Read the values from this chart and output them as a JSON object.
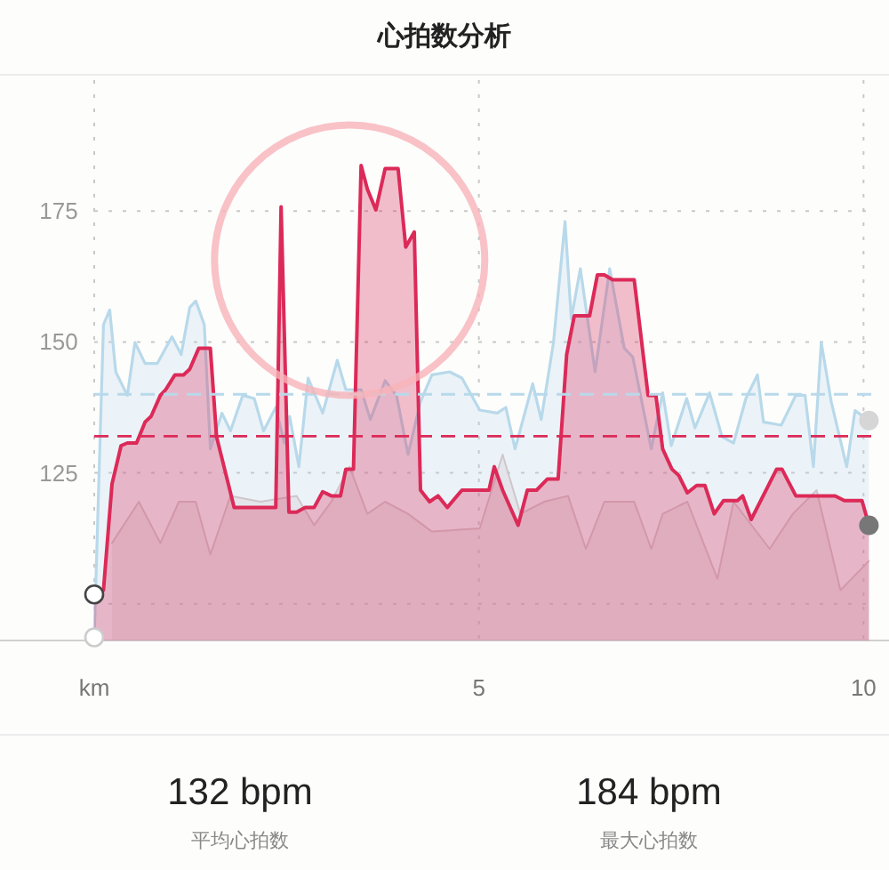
{
  "chart_data": {
    "type": "area",
    "title": "心拍数分析",
    "xlim": [
      0,
      10.1
    ],
    "ylim": [
      93,
      200
    ],
    "xticks": [
      {
        "value": 0,
        "label": "km"
      },
      5,
      10
    ],
    "yticks": [
      {
        "value": 100,
        "label": null
      },
      125,
      150,
      175
    ],
    "grid": true,
    "series": [
      {
        "color": "#cfc6cb",
        "x": [
          0.23,
          0.58,
          0.86,
          1.1,
          1.32,
          1.51,
          1.77,
          2.16,
          2.63,
          2.86,
          3.08,
          3.32,
          3.55,
          3.78,
          4.08,
          4.39,
          5.01,
          5.31,
          5.54,
          5.85,
          6.16,
          6.39,
          6.63,
          7.02,
          7.24,
          7.39,
          7.71,
          8.1,
          8.31,
          8.78,
          9.08,
          9.39,
          9.7,
          10.07
        ],
        "values": [
          111.6,
          119.5,
          111.6,
          119.5,
          119.5,
          109.4,
          120.6,
          119.5,
          120.6,
          115,
          119.5,
          126.2,
          117.2,
          119.5,
          117.2,
          113.8,
          114.4,
          128.5,
          117.2,
          119.5,
          120.6,
          110.5,
          119.5,
          119.5,
          110.5,
          117.2,
          119.5,
          104.8,
          119.5,
          110.5,
          117.2,
          121.7,
          102.6,
          108.2
        ]
      },
      {
        "color": "#b8d9ea",
        "x": [
          0,
          0.12,
          0.2,
          0.28,
          0.43,
          0.53,
          0.66,
          0.82,
          1.01,
          1.13,
          1.24,
          1.32,
          1.43,
          1.51,
          1.66,
          1.77,
          1.93,
          2.08,
          2.2,
          2.36,
          2.47,
          2.54,
          2.66,
          2.78,
          2.97,
          3.16,
          3.27,
          3.47,
          3.59,
          3.78,
          3.93,
          4.08,
          4.24,
          4.39,
          4.62,
          4.78,
          5.01,
          5.24,
          5.35,
          5.47,
          5.7,
          5.81,
          5.97,
          6.12,
          6.2,
          6.32,
          6.51,
          6.7,
          6.89,
          7.0,
          7.24,
          7.39,
          7.5,
          7.7,
          7.81,
          8.0,
          8.16,
          8.31,
          8.47,
          8.62,
          8.7,
          8.93,
          9.12,
          9.24,
          9.35,
          9.45,
          9.58,
          9.78,
          9.89,
          10.07
        ],
        "values": [
          93.6,
          153.3,
          156.1,
          144.3,
          139.8,
          149.9,
          145.9,
          145.9,
          151,
          147.6,
          156.6,
          157.8,
          153.3,
          129.6,
          136.4,
          133,
          139.8,
          139.2,
          133,
          137.5,
          130.7,
          135.8,
          126.2,
          143.1,
          136.4,
          146.5,
          140.9,
          140.9,
          135.2,
          142.6,
          139.8,
          128.5,
          138.6,
          143.7,
          144.3,
          143.1,
          137,
          136.4,
          137.5,
          129.6,
          142,
          135.2,
          149.9,
          173,
          154.4,
          164,
          144.3,
          164,
          148.8,
          147.1,
          129.6,
          140.3,
          130.2,
          139.2,
          133.6,
          140.3,
          131.9,
          130.7,
          139.2,
          143.7,
          134.7,
          134.1,
          139.8,
          139.8,
          126.2,
          149.9,
          138.6,
          126.2,
          136.9,
          135
        ]
      },
      {
        "color": "#dc2a58",
        "x": [
          0,
          0.12,
          0.23,
          0.35,
          0.43,
          0.55,
          0.66,
          0.74,
          0.86,
          0.93,
          1.05,
          1.16,
          1.24,
          1.36,
          1.51,
          1.59,
          1.82,
          2.16,
          2.36,
          2.43,
          2.53,
          2.63,
          2.74,
          2.86,
          2.97,
          3.08,
          3.2,
          3.27,
          3.37,
          3.47,
          3.55,
          3.66,
          3.78,
          3.95,
          4.05,
          4.16,
          4.24,
          4.36,
          4.47,
          4.59,
          4.78,
          5.13,
          5.2,
          5.31,
          5.51,
          5.63,
          5.75,
          5.89,
          6.03,
          6.14,
          6.24,
          6.44,
          6.54,
          6.63,
          6.74,
          7.02,
          7.2,
          7.3,
          7.39,
          7.51,
          7.6,
          7.71,
          7.83,
          7.94,
          8.06,
          8.18,
          8.36,
          8.43,
          8.54,
          8.87,
          8.94,
          9.12,
          9.63,
          9.75,
          9.98,
          10.07
        ],
        "values": [
          101.8,
          102.6,
          122.9,
          130.2,
          130.7,
          130.7,
          134.7,
          135.8,
          139.8,
          140.9,
          143.7,
          143.7,
          144.8,
          148.8,
          148.8,
          131.9,
          118.4,
          118.4,
          118.4,
          175.8,
          117.5,
          117.5,
          118.4,
          118.4,
          121.4,
          120.6,
          120.6,
          125.7,
          125.7,
          183.7,
          179.2,
          175.2,
          183.1,
          183.1,
          168.1,
          171,
          121.7,
          119.5,
          120.6,
          118.4,
          121.7,
          121.7,
          126.2,
          121.7,
          115,
          121.7,
          121.7,
          123.8,
          123.8,
          147.6,
          155,
          155,
          162.8,
          162.8,
          161.9,
          161.9,
          139.8,
          139.8,
          129.6,
          125.7,
          124.5,
          121.2,
          122.6,
          122.6,
          117.2,
          119.7,
          119.7,
          120.6,
          116.1,
          125.7,
          125.7,
          120.6,
          120.6,
          119.7,
          119.7,
          115
        ]
      }
    ],
    "ref_lines": [
      {
        "axis": "y",
        "value": 140,
        "color": "#b8d9ea",
        "line_style": "dashed"
      },
      {
        "axis": "y",
        "value": 132,
        "color": "#dc2a58",
        "line_style": "dashed"
      }
    ],
    "annotations": [
      "132 bpm",
      "平均心拍数",
      "184 bpm",
      "最大心拍数"
    ]
  }
}
